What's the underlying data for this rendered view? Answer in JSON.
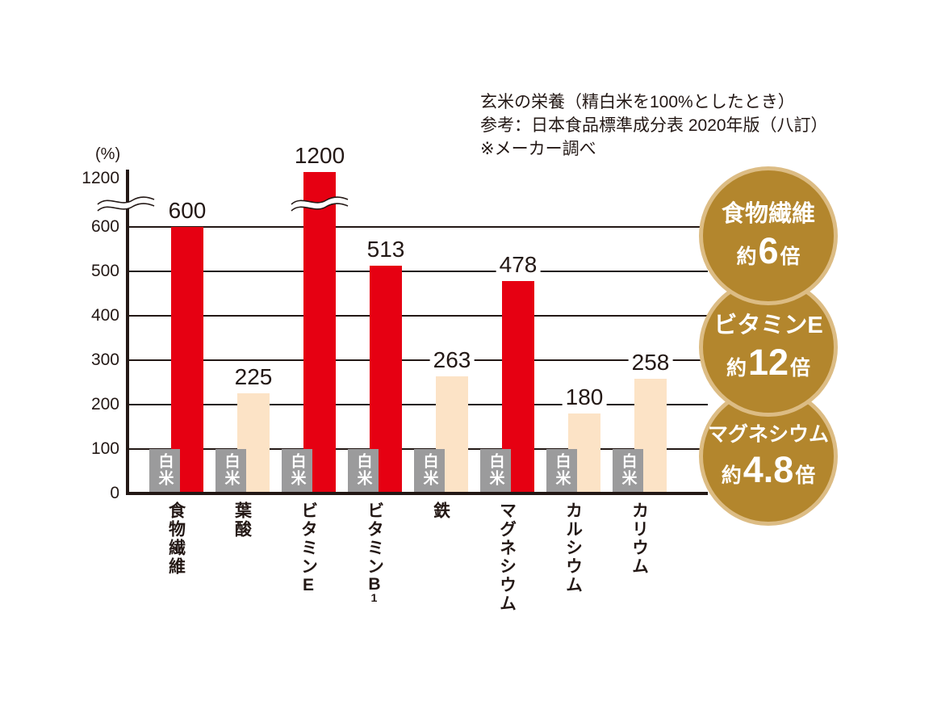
{
  "header": {
    "lines": [
      "玄米の栄養（精白米を100%としたとき）",
      "参考：日本食品標準成分表 2020年版（八訂）",
      "※メーカー調べ"
    ]
  },
  "chart_data": {
    "type": "bar",
    "title": "玄米の栄養（精白米を100%としたとき）",
    "notes": [
      "参考：日本食品標準成分表 2020年版（八訂）",
      "※メーカー調べ"
    ],
    "unit_label": "(%)",
    "ylabel": "(%)",
    "y_ticks": [
      0,
      100,
      200,
      300,
      400,
      500,
      600,
      1200
    ],
    "ylim": [
      0,
      1200
    ],
    "axis_break_between": [
      600,
      1200
    ],
    "grid": true,
    "categories": [
      "食物繊維",
      "葉酸",
      "ビタミンE",
      "ビタミンB1",
      "鉄",
      "マグネシウム",
      "カルシウム",
      "カリウム"
    ],
    "series": [
      {
        "name": "白米",
        "values": [
          100,
          100,
          100,
          100,
          100,
          100,
          100,
          100
        ]
      },
      {
        "name": "玄米",
        "values": [
          600,
          225,
          1200,
          513,
          263,
          478,
          180,
          258
        ]
      }
    ],
    "baseline_bar_label": "白米",
    "emphasized": [
      true,
      false,
      true,
      true,
      false,
      true,
      false,
      false
    ]
  },
  "badges": [
    {
      "label": "食物繊維",
      "prefix": "約",
      "number": "6",
      "suffix": "倍"
    },
    {
      "label": "ビタミンE",
      "prefix": "約",
      "number": "12",
      "suffix": "倍"
    },
    {
      "label": "マグネシウム",
      "prefix": "約",
      "number": "4.8",
      "suffix": "倍"
    }
  ],
  "colors": {
    "emphasis_bar": "#e60012",
    "normal_bar": "#fce3c6",
    "baseline_bar": "#9b9b9c",
    "badge_fill": "#b3862d",
    "badge_ring": "#dcbc84",
    "ink": "#231815"
  }
}
